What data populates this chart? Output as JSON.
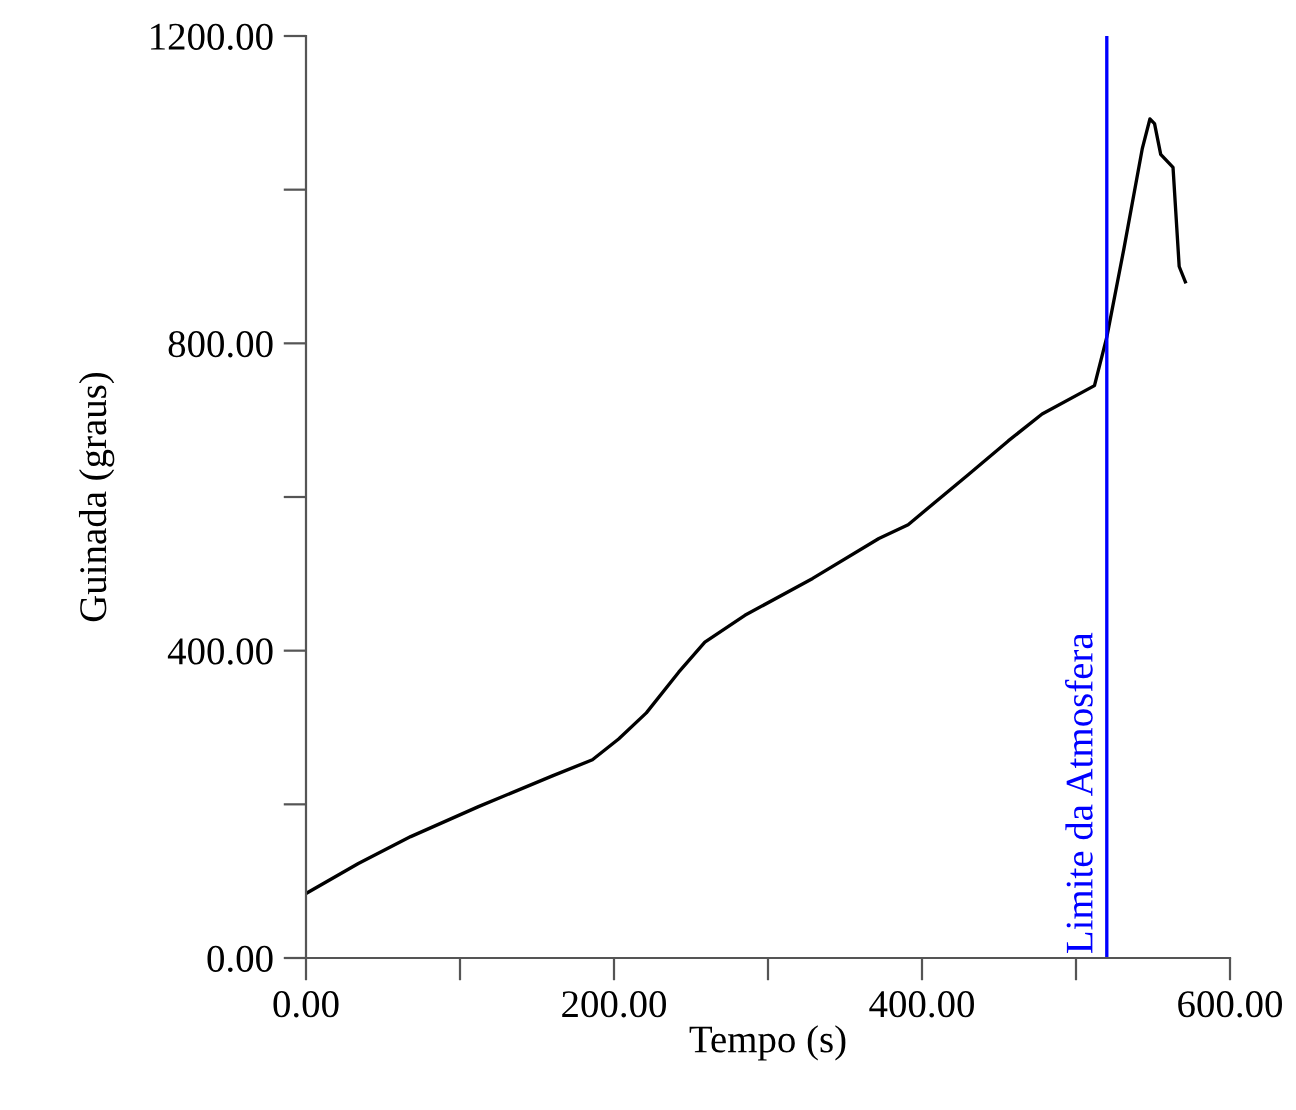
{
  "chart_data": {
    "type": "line",
    "xlabel": "Tempo (s)",
    "ylabel": "Guinada (graus)",
    "xlim": [
      0,
      600
    ],
    "ylim": [
      0,
      1200
    ],
    "xticks": [
      {
        "value": 0,
        "label": "0.00"
      },
      {
        "value": 100,
        "label": null
      },
      {
        "value": 200,
        "label": "200.00"
      },
      {
        "value": 300,
        "label": null
      },
      {
        "value": 400,
        "label": "400.00"
      },
      {
        "value": 500,
        "label": null
      },
      {
        "value": 600,
        "label": "600.00"
      }
    ],
    "yticks": [
      {
        "value": 0,
        "label": "0.00"
      },
      {
        "value": 200,
        "label": null
      },
      {
        "value": 400,
        "label": "400.00"
      },
      {
        "value": 600,
        "label": null
      },
      {
        "value": 800,
        "label": "800.00"
      },
      {
        "value": 1000,
        "label": null
      },
      {
        "value": 1200,
        "label": "1200.00"
      }
    ],
    "grid": false,
    "marker": "none",
    "line_style": "solid",
    "series": [
      {
        "color": "#000000",
        "x": [
          0,
          34,
          68,
          112,
          160,
          186,
          203,
          221,
          242,
          259,
          285,
          329,
          372,
          391,
          430,
          456,
          478,
          512,
          520,
          531,
          543,
          548,
          551,
          555,
          563,
          567,
          571
        ],
        "values": [
          84,
          123,
          158,
          197,
          237,
          258,
          285,
          319,
          372,
          411,
          446,
          494,
          546,
          564,
          629,
          673,
          708,
          745,
          808,
          922,
          1053,
          1092,
          1086,
          1046,
          1029,
          900,
          880
        ]
      }
    ],
    "ref_lines": [
      {
        "axis": "x",
        "value": 520,
        "label": "Limite da Atmosfera",
        "color": "#0000ff",
        "line_style": "solid"
      }
    ]
  }
}
